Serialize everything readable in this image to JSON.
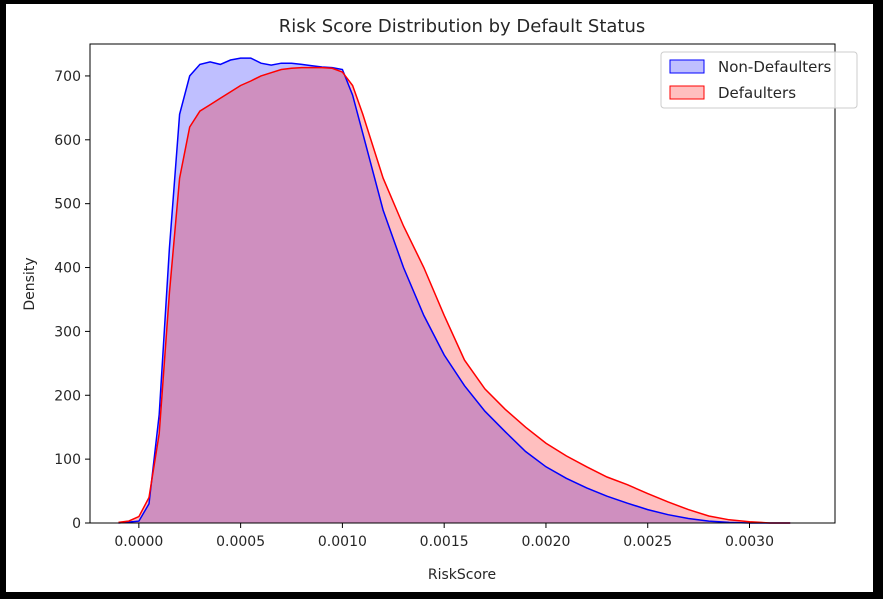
{
  "chart_data": {
    "type": "area",
    "title": "Risk Score Distribution by Default Status",
    "xlabel": "RiskScore",
    "ylabel": "Density",
    "xlim": [
      -0.00024,
      0.00342
    ],
    "ylim": [
      0,
      750
    ],
    "xticks": [
      0.0,
      0.0005,
      0.001,
      0.0015,
      0.002,
      0.0025,
      0.003
    ],
    "xtick_labels": [
      "0.0000",
      "0.0005",
      "0.0010",
      "0.0015",
      "0.0020",
      "0.0025",
      "0.0030"
    ],
    "yticks": [
      0,
      100,
      200,
      300,
      400,
      500,
      600,
      700
    ],
    "ytick_labels": [
      "0",
      "100",
      "200",
      "300",
      "400",
      "500",
      "600",
      "700"
    ],
    "grid": false,
    "legend_position": "upper-right",
    "series": [
      {
        "name": "Non-Defaulters",
        "color": "#0000ff",
        "fill": "#0000ff",
        "fill_opacity": 0.25,
        "x": [
          -0.0001,
          0.0,
          5e-05,
          0.0001,
          0.00015,
          0.0002,
          0.00025,
          0.0003,
          0.00035,
          0.0004,
          0.00045,
          0.0005,
          0.00055,
          0.0006,
          0.00065,
          0.0007,
          0.00075,
          0.0008,
          0.00085,
          0.0009,
          0.00095,
          0.001,
          0.00105,
          0.0011,
          0.0012,
          0.0013,
          0.0014,
          0.0015,
          0.0016,
          0.0017,
          0.0018,
          0.0019,
          0.002,
          0.0021,
          0.0022,
          0.0023,
          0.0024,
          0.0025,
          0.0026,
          0.0027,
          0.0028,
          0.0029,
          0.003,
          0.0031,
          0.0032
        ],
        "y": [
          0,
          3,
          30,
          170,
          430,
          640,
          700,
          718,
          722,
          718,
          725,
          728,
          728,
          720,
          717,
          720,
          720,
          718,
          716,
          714,
          713,
          710,
          670,
          610,
          490,
          400,
          325,
          263,
          215,
          175,
          143,
          112,
          88,
          70,
          55,
          42,
          31,
          21,
          13,
          7,
          3,
          1,
          0,
          0,
          0
        ]
      },
      {
        "name": "Defaulters",
        "color": "#ff0000",
        "fill": "#ff0000",
        "fill_opacity": 0.25,
        "x": [
          -0.0001,
          -5e-05,
          0.0,
          5e-05,
          0.0001,
          0.00015,
          0.0002,
          0.00025,
          0.0003,
          0.00035,
          0.0004,
          0.00045,
          0.0005,
          0.00055,
          0.0006,
          0.00065,
          0.0007,
          0.00075,
          0.0008,
          0.00085,
          0.0009,
          0.00095,
          0.001,
          0.00105,
          0.0011,
          0.0012,
          0.0013,
          0.0014,
          0.0015,
          0.0016,
          0.0017,
          0.0018,
          0.0019,
          0.002,
          0.0021,
          0.0022,
          0.0023,
          0.0024,
          0.0025,
          0.0026,
          0.0027,
          0.0028,
          0.0029,
          0.003,
          0.0031,
          0.0032
        ],
        "y": [
          1,
          3,
          10,
          40,
          140,
          360,
          540,
          620,
          645,
          655,
          665,
          675,
          685,
          692,
          700,
          705,
          710,
          712,
          713,
          713,
          713,
          712,
          706,
          685,
          640,
          540,
          465,
          400,
          325,
          255,
          210,
          178,
          150,
          125,
          105,
          88,
          72,
          60,
          46,
          33,
          21,
          11,
          5,
          2,
          0,
          0
        ]
      }
    ]
  }
}
